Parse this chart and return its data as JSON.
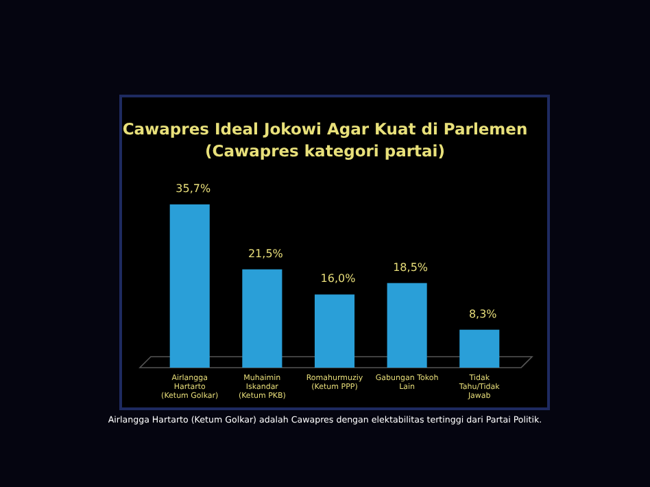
{
  "chart_data": {
    "type": "bar",
    "title": "Cawapres Ideal Jokowi Agar Kuat di Parlemen",
    "subtitle": "(Cawapres kategori partai)",
    "categories": [
      "Airlangga Hartarto (Ketum Golkar)",
      "Muhaimin Iskandar (Ketum PKB)",
      "Romahurmuziy (Ketum PPP)",
      "Gabungan Tokoh Lain",
      "Tidak Tahu/Tidak Jawab"
    ],
    "values": [
      35.7,
      21.5,
      16.0,
      18.5,
      8.3
    ],
    "value_labels": [
      "35,7%",
      "21,5%",
      "16,0%",
      "18,5%",
      "8,3%"
    ],
    "color": "#2a9fd8",
    "annotations": [
      "Airlangga Hartarto (Ketum Golkar) adalah Cawapres dengan elektabilitas tertinggi dari Partai Politik."
    ]
  }
}
